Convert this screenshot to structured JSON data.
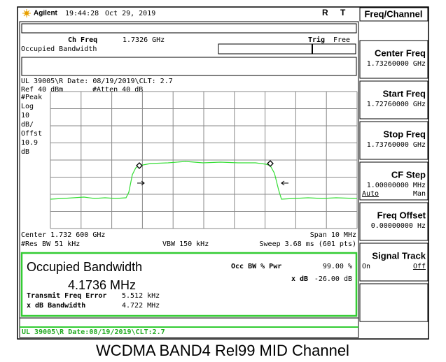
{
  "header": {
    "brand": "Agilent",
    "time": "19:44:28",
    "date": "Oct 29, 2019",
    "flags": [
      "R",
      "T"
    ]
  },
  "screen": {
    "ch_freq_label": "Ch Freq",
    "ch_freq": "1.7326 GHz",
    "trig_label": "Trig",
    "trig": "Free",
    "mode": "Occupied Bandwidth",
    "info": "UL 39005\\R Date: 08/19/2019\\CLT: 2.7",
    "ref": "Ref 40 dBm",
    "atten": "#Atten 40 dB",
    "scale_labels": [
      "#Peak",
      "Log",
      "10",
      "dB/",
      "Offst",
      "10.9",
      "dB"
    ],
    "center": "Center 1.732 600 GHz",
    "span": "Span 10 MHz",
    "res_bw": "#Res BW 51 kHz",
    "vbw": "VBW 150 kHz",
    "sweep": "Sweep 3.68 ms (601 pts)"
  },
  "results": {
    "title": "Occupied Bandwidth",
    "value": "4.1736 MHz",
    "pwr_label": "Occ BW % Pwr",
    "pwr": "99.00 %",
    "xdb_label": "x dB",
    "xdb": "-26.00 dB",
    "tfe_label": "Transmit Freq Error",
    "tfe": "5.512 kHz",
    "xdbbw_label": "x dB Bandwidth",
    "xdbbw": "4.722 MHz"
  },
  "status": "UL 39005\\R Date:08/19/2019\\CLT:2.7",
  "menu": {
    "title": "Freq/Channel",
    "keys": [
      {
        "label": "Center Freq",
        "value": "1.73260000 GHz"
      },
      {
        "label": "Start Freq",
        "value": "1.72760000 GHz"
      },
      {
        "label": "Stop Freq",
        "value": "1.73760000 GHz"
      },
      {
        "label": "CF Step",
        "value": "1.00000000 MHz",
        "options": [
          "Auto",
          "Man"
        ]
      },
      {
        "label": "Freq Offset",
        "value": "0.00000000 Hz"
      },
      {
        "label": "Signal Track",
        "options": [
          "On",
          "Off"
        ]
      }
    ]
  },
  "caption": "WCDMA BAND4 Rel99 MID Channel"
}
